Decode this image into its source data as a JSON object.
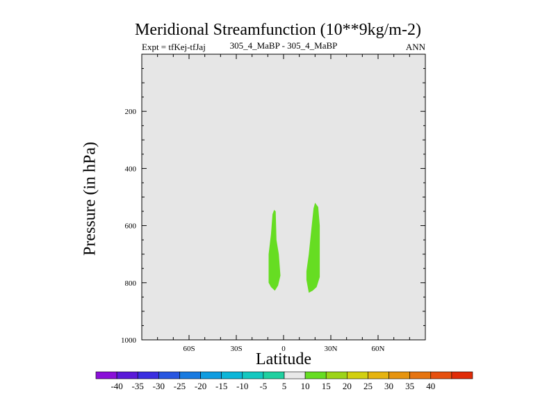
{
  "header": {
    "title": "Meridional Streamfunction (10**9kg/m-2)",
    "left_label": "Expt = tfKej-tfJaj",
    "center_label": "305_4_MaBP - 305_4_MaBP",
    "right_label": "ANN"
  },
  "chart_data": {
    "type": "contour",
    "xlabel": "Latitude",
    "ylabel": "Pressure (in hPa)",
    "xlim": [
      -90,
      90
    ],
    "ylim": [
      0,
      1000
    ],
    "y_inverted": true,
    "xticks": [
      {
        "value": -60,
        "label": "60S"
      },
      {
        "value": -30,
        "label": "30S"
      },
      {
        "value": 0,
        "label": "0"
      },
      {
        "value": 30,
        "label": "30N"
      },
      {
        "value": 60,
        "label": "60N"
      }
    ],
    "yticks": [
      {
        "value": 200,
        "label": "200"
      },
      {
        "value": 400,
        "label": "400"
      },
      {
        "value": 600,
        "label": "600"
      },
      {
        "value": 800,
        "label": "800"
      },
      {
        "value": 1000,
        "label": "1000"
      }
    ],
    "background_color": "#e6e6e6",
    "filled_regions": [
      {
        "value_range": [
          5,
          10
        ],
        "color": "#66dd22",
        "outline": [
          [
            -6,
            545
          ],
          [
            -5,
            550
          ],
          [
            -4.5,
            650
          ],
          [
            -3,
            700
          ],
          [
            -2,
            775
          ],
          [
            -3.5,
            810
          ],
          [
            -5.5,
            828
          ],
          [
            -8,
            815
          ],
          [
            -9.5,
            800
          ],
          [
            -9.5,
            700
          ],
          [
            -8,
            630
          ],
          [
            -7,
            560
          ]
        ]
      },
      {
        "value_range": [
          5,
          10
        ],
        "color": "#66dd22",
        "outline": [
          [
            20,
            520
          ],
          [
            22,
            535
          ],
          [
            23,
            600
          ],
          [
            23,
            700
          ],
          [
            23,
            780
          ],
          [
            21,
            815
          ],
          [
            18.5,
            828
          ],
          [
            16,
            835
          ],
          [
            14.5,
            790
          ],
          [
            14.5,
            760
          ],
          [
            16,
            700
          ],
          [
            17.5,
            620
          ],
          [
            19,
            540
          ]
        ]
      }
    ],
    "colorbar": {
      "labels": [
        "-40",
        "-35",
        "-30",
        "-25",
        "-20",
        "-15",
        "-10",
        "-5",
        "5",
        "10",
        "15",
        "20",
        "25",
        "30",
        "35",
        "40"
      ],
      "colors": [
        "#8a10d8",
        "#5a1ad8",
        "#3a2ee0",
        "#2856e0",
        "#187ae0",
        "#109ce0",
        "#0cb6d8",
        "#14c8c0",
        "#20d0a0",
        "#e8e8e8",
        "#66dd22",
        "#9cd418",
        "#d2d010",
        "#e6b410",
        "#e69410",
        "#e67410",
        "#e65010",
        "#e02c08"
      ]
    }
  }
}
